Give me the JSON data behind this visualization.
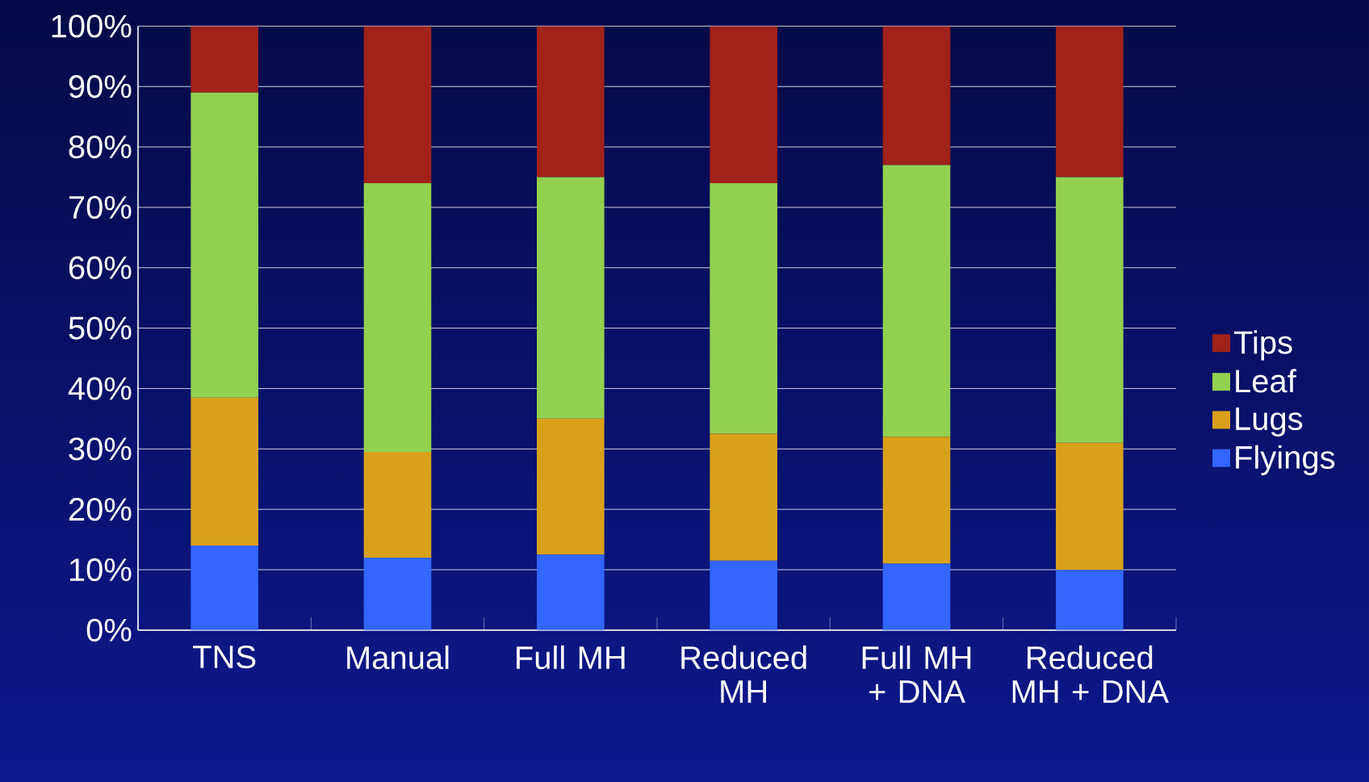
{
  "chart_data": {
    "type": "bar",
    "stacked": true,
    "categories": [
      "TNS",
      "Manual",
      "Full MH",
      "Reduced MH",
      "Full MH + DNA",
      "Reduced MH + DNA"
    ],
    "series": [
      {
        "name": "Flyings",
        "color": "#3366ff",
        "values": [
          14,
          12,
          12.5,
          11.5,
          11,
          10
        ]
      },
      {
        "name": "Lugs",
        "color": "#d9a11a",
        "values": [
          24.5,
          17.5,
          22.5,
          21,
          21,
          21
        ]
      },
      {
        "name": "Leaf",
        "color": "#92d050",
        "values": [
          50.5,
          44.5,
          40,
          41.5,
          45,
          44
        ]
      },
      {
        "name": "Tips",
        "color": "#a0221a",
        "values": [
          11,
          26,
          25,
          26,
          23,
          25
        ]
      }
    ],
    "ylim": [
      0,
      100
    ],
    "yticks": [
      {
        "value": 0,
        "label": "0%"
      },
      {
        "value": 10,
        "label": "10%"
      },
      {
        "value": 20,
        "label": "20%"
      },
      {
        "value": 30,
        "label": "30%"
      },
      {
        "value": 40,
        "label": "40%"
      },
      {
        "value": 50,
        "label": "50%"
      },
      {
        "value": 60,
        "label": "60%"
      },
      {
        "value": 70,
        "label": "70%"
      },
      {
        "value": 80,
        "label": "80%"
      },
      {
        "value": 90,
        "label": "90%"
      },
      {
        "value": 100,
        "label": "100%"
      }
    ],
    "grid": "y",
    "legend": "right"
  }
}
